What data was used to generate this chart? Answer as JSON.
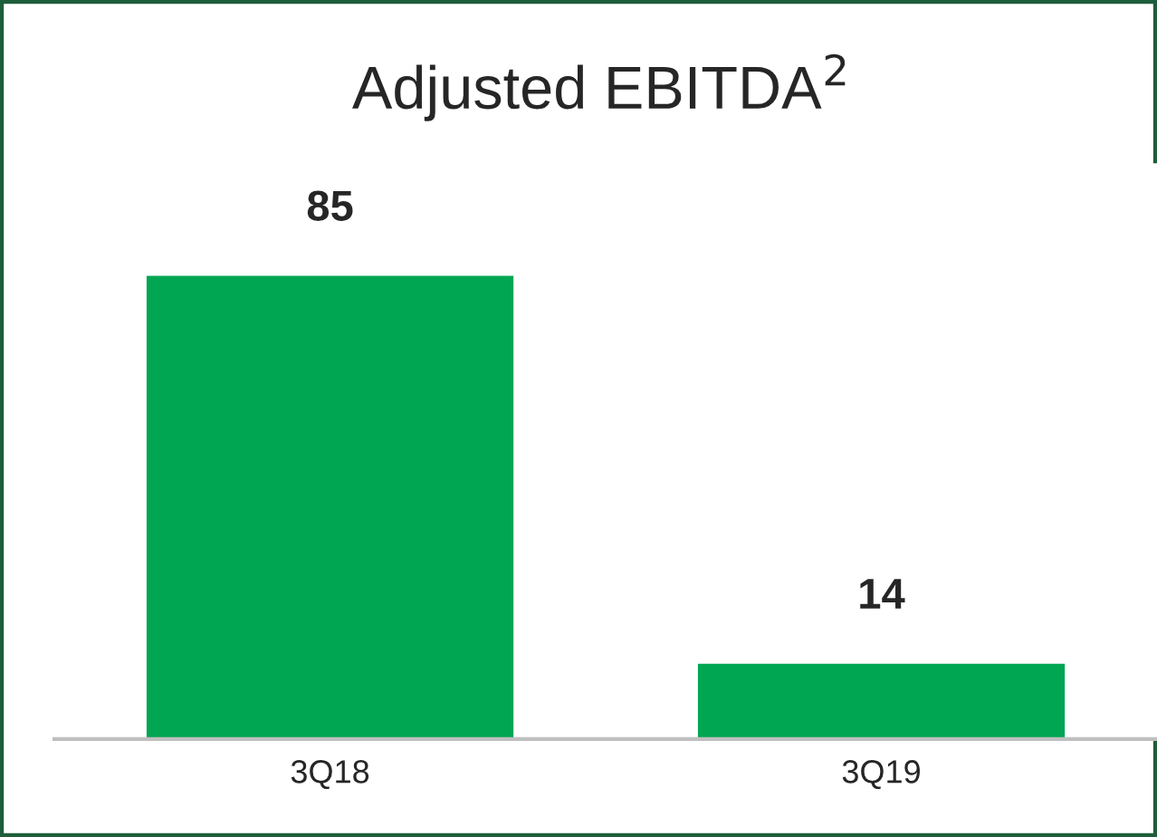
{
  "chart_data": {
    "type": "bar",
    "title": "Adjusted EBITDA$^{2}$",
    "categories": [
      "3Q18",
      "3Q19"
    ],
    "values": [
      85,
      14
    ],
    "color": "#00a651",
    "data_labels": true,
    "grid": false,
    "legend": false
  }
}
